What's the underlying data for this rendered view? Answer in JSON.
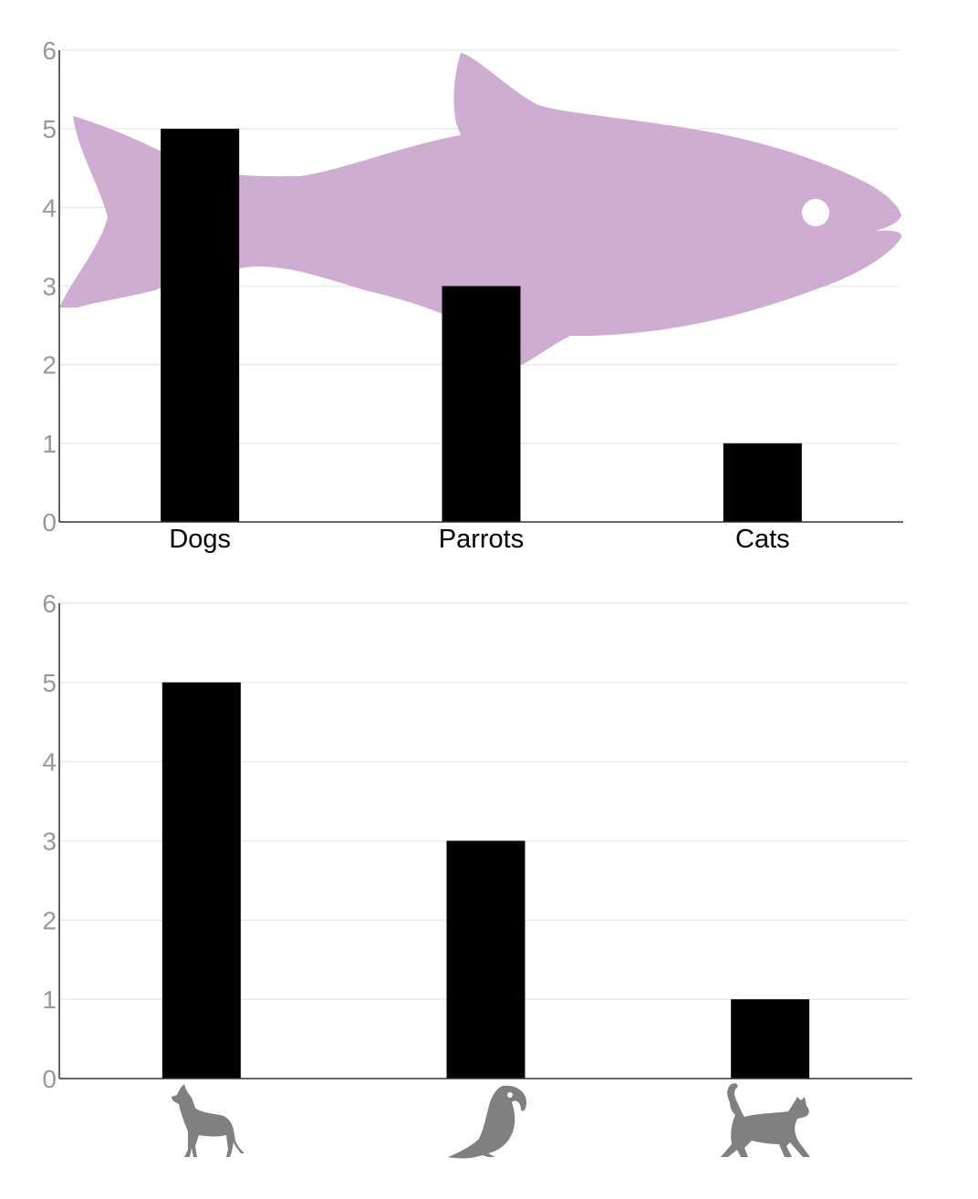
{
  "chart_data": [
    {
      "type": "bar",
      "categories": [
        "Dogs",
        "Parrots",
        "Cats"
      ],
      "values": [
        5,
        3,
        1
      ],
      "ylim": [
        0,
        6
      ],
      "yticks": [
        0,
        1,
        2,
        3,
        4,
        5,
        6
      ],
      "grid": true,
      "bar_color": "#000000",
      "background_image": "fish-silhouette",
      "background_color": "#cfadd3",
      "title": "",
      "xlabel": "",
      "ylabel": ""
    },
    {
      "type": "bar",
      "categories": [
        "dog-icon",
        "parrot-icon",
        "cat-icon"
      ],
      "values": [
        5,
        3,
        1
      ],
      "ylim": [
        0,
        6
      ],
      "yticks": [
        0,
        1,
        2,
        3,
        4,
        5,
        6
      ],
      "grid": true,
      "bar_color": "#000000",
      "icon_color": "#808080",
      "title": "",
      "xlabel": "",
      "ylabel": ""
    }
  ]
}
